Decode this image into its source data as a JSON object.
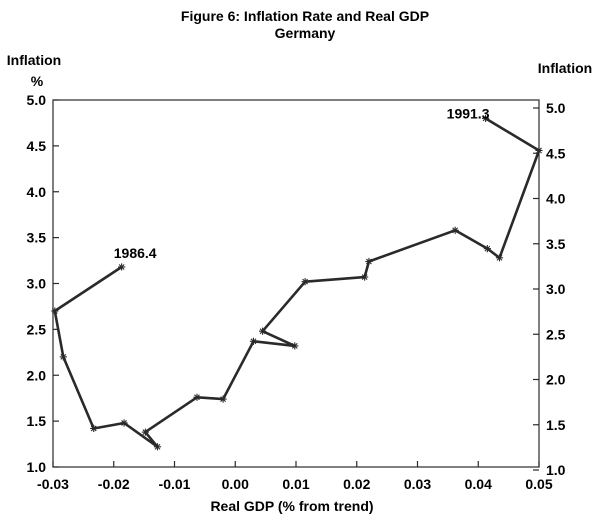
{
  "chart_data": {
    "type": "line",
    "title": "Figure 6: Inflation Rate and Real GDP",
    "subtitle": "Germany",
    "xlabel": "Real GDP (% from trend)",
    "ylabel_left": [
      "Inflation",
      "%"
    ],
    "ylabel_right": "Inflation",
    "xlim": [
      -0.03,
      0.05
    ],
    "ylim": [
      1.0,
      5.0
    ],
    "xticks": [
      "-0.03",
      "-0.02",
      "-0.01",
      "0.00",
      "0.01",
      "0.02",
      "0.03",
      "0.04",
      "0.05"
    ],
    "yticks_left": [
      "1.0",
      "1.5",
      "2.0",
      "2.5",
      "3.0",
      "3.5",
      "4.0",
      "4.5",
      "5.0"
    ],
    "yticks_right": [
      "1.0",
      "1.5",
      "2.0",
      "2.5",
      "3.0",
      "3.5",
      "4.0",
      "4.5",
      "5.0"
    ],
    "grid": false,
    "series": [
      {
        "name": "Germany 1986.4–1991.3",
        "marker": "asterisk",
        "color": "#2a2a2a",
        "x": [
          -0.0187,
          -0.0297,
          -0.0283,
          -0.0233,
          -0.0183,
          -0.0128,
          -0.0148,
          -0.0063,
          -0.002,
          0.003,
          0.0098,
          0.0045,
          0.0115,
          0.0213,
          0.022,
          0.0362,
          0.0415,
          0.0435,
          0.05,
          0.0412
        ],
        "y": [
          3.18,
          2.7,
          2.2,
          1.42,
          1.48,
          1.22,
          1.38,
          1.76,
          1.74,
          2.37,
          2.32,
          2.48,
          3.02,
          3.07,
          3.24,
          3.58,
          3.38,
          3.28,
          4.45,
          4.8
        ]
      }
    ],
    "annotations": [
      {
        "text": "1986.4",
        "x": -0.02,
        "y": 3.28
      },
      {
        "text": "1991.3",
        "x": 0.0348,
        "y": 4.8
      }
    ]
  }
}
